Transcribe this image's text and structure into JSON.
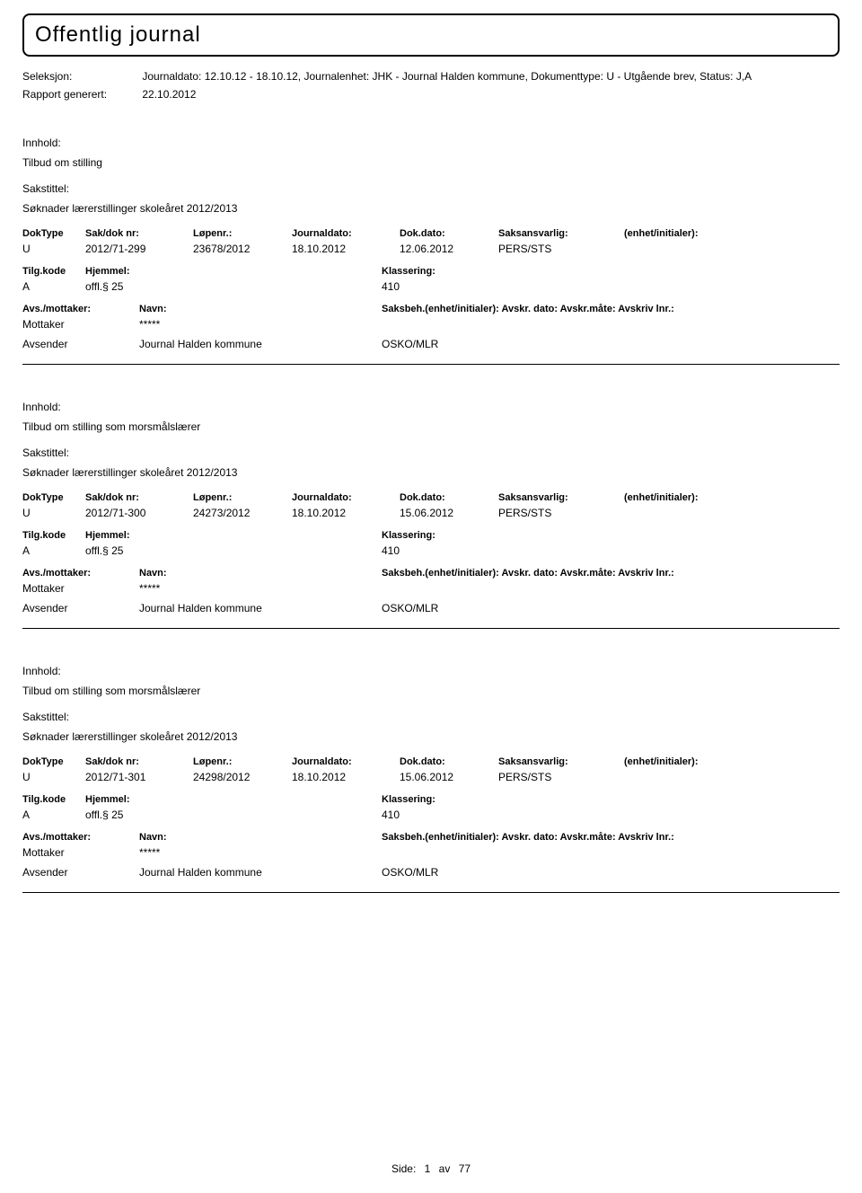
{
  "title": "Offentlig journal",
  "header": {
    "seleksjon_label": "Seleksjon:",
    "seleksjon_value": "Journaldato: 12.10.12 - 18.10.12, Journalenhet: JHK - Journal Halden kommune, Dokumenttype: U - Utgående brev, Status: J,A",
    "rapport_label": "Rapport generert:",
    "rapport_value": "22.10.2012"
  },
  "labels": {
    "innhold": "Innhold:",
    "sakstittel": "Sakstittel:",
    "doktype": "DokType",
    "sakdok": "Sak/dok nr:",
    "lopenr": "Løpenr.:",
    "journaldato": "Journaldato:",
    "dokdato": "Dok.dato:",
    "saksansvarlig": "Saksansvarlig:",
    "enhet": "(enhet/initialer):",
    "tilgkode": "Tilg.kode",
    "hjemmel": "Hjemmel:",
    "klassering": "Klassering:",
    "avsmottaker": "Avs./mottaker:",
    "navn": "Navn:",
    "saksbeh": "Saksbeh.(enhet/initialer): Avskr. dato: Avskr.måte: Avskriv lnr.:",
    "mottaker": "Mottaker",
    "avsender": "Avsender"
  },
  "entries": [
    {
      "innhold": "Tilbud om stilling",
      "sakstittel": "Søknader lærerstillinger skoleåret 2012/2013",
      "doktype": "U",
      "sakdok": "2012/71-299",
      "lopenr": "23678/2012",
      "journaldato": "18.10.2012",
      "dokdato": "12.06.2012",
      "saksansvarlig": "PERS/STS",
      "tilgkode": "A",
      "hjemmel": "offl.§ 25",
      "klassering": "410",
      "mottaker_navn": "*****",
      "avsender_value": "Journal Halden kommune",
      "avsender_code": "OSKO/MLR"
    },
    {
      "innhold": "Tilbud om stilling som morsmålslærer",
      "sakstittel": "Søknader lærerstillinger skoleåret 2012/2013",
      "doktype": "U",
      "sakdok": "2012/71-300",
      "lopenr": "24273/2012",
      "journaldato": "18.10.2012",
      "dokdato": "15.06.2012",
      "saksansvarlig": "PERS/STS",
      "tilgkode": "A",
      "hjemmel": "offl.§ 25",
      "klassering": "410",
      "mottaker_navn": "*****",
      "avsender_value": "Journal Halden kommune",
      "avsender_code": "OSKO/MLR"
    },
    {
      "innhold": "Tilbud om stilling som morsmålslærer",
      "sakstittel": "Søknader lærerstillinger skoleåret 2012/2013",
      "doktype": "U",
      "sakdok": "2012/71-301",
      "lopenr": "24298/2012",
      "journaldato": "18.10.2012",
      "dokdato": "15.06.2012",
      "saksansvarlig": "PERS/STS",
      "tilgkode": "A",
      "hjemmel": "offl.§ 25",
      "klassering": "410",
      "mottaker_navn": "*****",
      "avsender_value": "Journal Halden kommune",
      "avsender_code": "OSKO/MLR"
    }
  ],
  "footer": {
    "side_label": "Side:",
    "page_current": "1",
    "page_sep": "av",
    "page_total": "77"
  }
}
